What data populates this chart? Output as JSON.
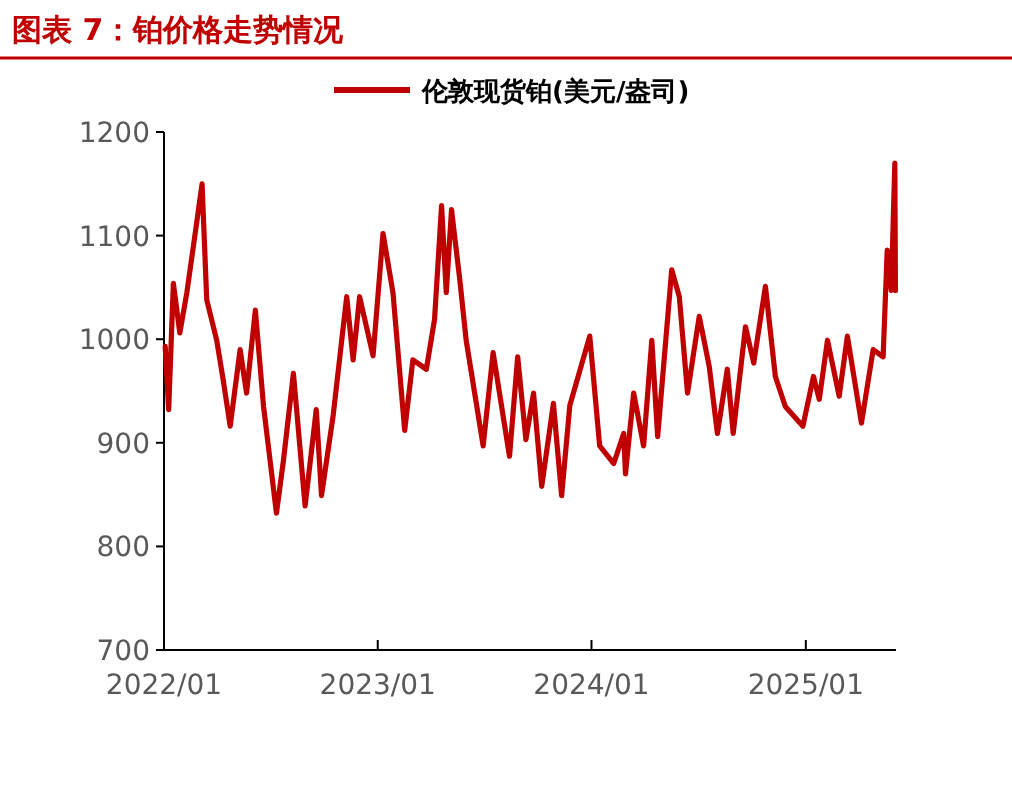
{
  "chart_data": {
    "type": "line",
    "title": "图表 7：铂价格走势情况",
    "xlim": [
      "2022-01-01",
      "2025-06-04"
    ],
    "xticks": [
      {
        "value": "2022-01",
        "label": "2022/01"
      },
      {
        "value": "2023-01",
        "label": "2023/01"
      },
      {
        "value": "2024-01",
        "label": "2024/01"
      },
      {
        "value": "2025-01",
        "label": "2025/01"
      }
    ],
    "ylim": [
      700,
      1200
    ],
    "yticks": [
      700,
      800,
      900,
      1000,
      1100,
      1200
    ],
    "grid": false,
    "legend": "top",
    "marker": "none",
    "line_style": "solid",
    "series": [
      {
        "name": "伦敦现货铂(美元/盎司)",
        "color": "#c00000",
        "x": [
          "2022-01-03",
          "2022-01-09",
          "2022-01-17",
          "2022-01-28",
          "2022-02-09",
          "2022-02-20",
          "2022-03-07",
          "2022-03-15",
          "2022-04-01",
          "2022-04-12",
          "2022-04-24",
          "2022-05-11",
          "2022-05-22",
          "2022-06-06",
          "2022-06-20",
          "2022-07-12",
          "2022-07-24",
          "2022-08-10",
          "2022-08-30",
          "2022-09-18",
          "2022-09-27",
          "2022-10-17",
          "2022-11-09",
          "2022-11-20",
          "2022-12-01",
          "2022-12-24",
          "2023-01-10",
          "2023-01-27",
          "2023-02-16",
          "2023-03-02",
          "2023-03-25",
          "2023-04-08",
          "2023-04-20",
          "2023-04-28",
          "2023-05-07",
          "2023-05-21",
          "2023-06-01",
          "2023-06-30",
          "2023-07-17",
          "2023-08-14",
          "2023-08-28",
          "2023-09-11",
          "2023-09-24",
          "2023-10-08",
          "2023-10-28",
          "2023-11-11",
          "2023-11-25",
          "2023-12-29",
          "2024-01-15",
          "2024-02-08",
          "2024-02-25",
          "2024-02-28",
          "2024-03-13",
          "2024-03-30",
          "2024-04-13",
          "2024-04-23",
          "2024-05-17",
          "2024-05-30",
          "2024-06-13",
          "2024-07-03",
          "2024-07-20",
          "2024-08-03",
          "2024-08-20",
          "2024-08-30",
          "2024-09-20",
          "2024-10-04",
          "2024-10-24",
          "2024-11-10",
          "2024-11-27",
          "2024-12-27",
          "2025-01-14",
          "2025-01-24",
          "2025-02-07",
          "2025-02-27",
          "2025-03-13",
          "2025-04-06",
          "2025-04-26",
          "2025-05-13",
          "2025-05-20",
          "2025-05-27",
          "2025-06-02",
          "2025-06-03"
        ],
        "values": [
          993,
          932,
          1054,
          1006,
          1045,
          1089,
          1150,
          1038,
          999,
          961,
          916,
          990,
          948,
          1028,
          935,
          832,
          883,
          967,
          839,
          932,
          849,
          927,
          1041,
          980,
          1041,
          984,
          1102,
          1045,
          912,
          980,
          971,
          1019,
          1129,
          1045,
          1125,
          1058,
          999,
          897,
          987,
          887,
          983,
          903,
          948,
          858,
          938,
          849,
          936,
          1003,
          897,
          880,
          909,
          870,
          948,
          897,
          999,
          906,
          1067,
          1041,
          948,
          1022,
          974,
          909,
          971,
          909,
          1012,
          977,
          1051,
          964,
          935,
          916,
          964,
          942,
          999,
          945,
          1003,
          919,
          990,
          983,
          1086,
          1047,
          1170,
          1047
        ]
      }
    ]
  }
}
